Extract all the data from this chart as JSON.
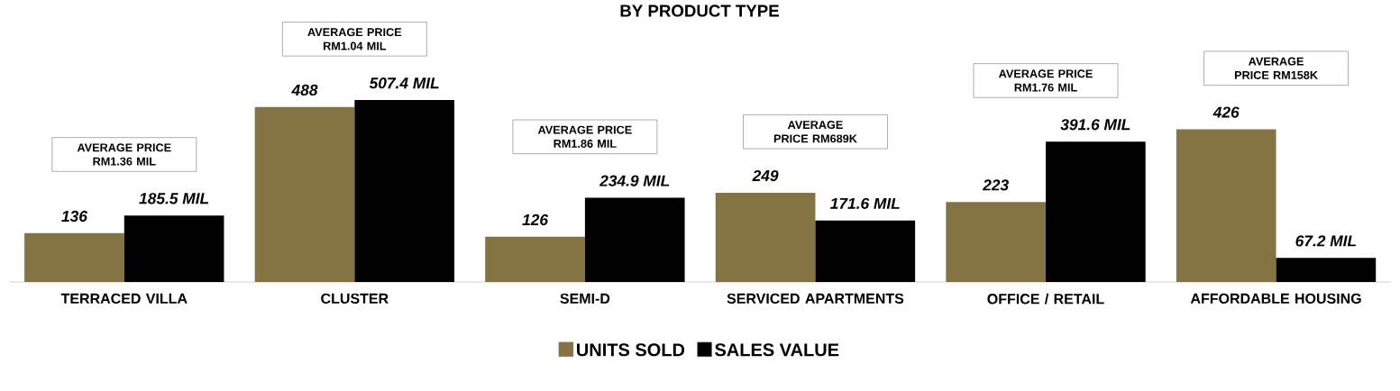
{
  "chart_data": {
    "type": "bar",
    "title": "BY PRODUCT TYPE",
    "categories": [
      "TERRACED VILLA",
      "CLUSTER",
      "SEMI-D",
      "SERVICED APARTMENTS",
      "OFFICE / RETAIL",
      "AFFORDABLE HOUSING"
    ],
    "series": [
      {
        "name": "UNITS SOLD",
        "color": "#857443",
        "values": [
          136,
          488,
          126,
          249,
          223,
          426
        ],
        "value_labels": [
          "136",
          "488",
          "126",
          "249",
          "223",
          "426"
        ]
      },
      {
        "name": "SALES VALUE",
        "color": "#000000",
        "values": [
          185.5,
          507.4,
          234.9,
          171.6,
          391.6,
          67.2
        ],
        "value_labels": [
          "185.5 MIL",
          "507.4 MIL",
          "234.9 MIL",
          "171.6 MIL",
          "391.6 MIL",
          "67.2 MIL"
        ]
      }
    ],
    "annotations": [
      "AVERAGE PRICE RM1.36 MIL",
      "AVERAGE PRICE RM1.04 MIL",
      "AVERAGE PRICE RM1.86 MIL",
      "AVERAGE PRICE RM689K",
      "AVERAGE PRICE RM1.76 MIL",
      "AVERAGE PRICE RM158K"
    ],
    "legend": "bottom"
  }
}
